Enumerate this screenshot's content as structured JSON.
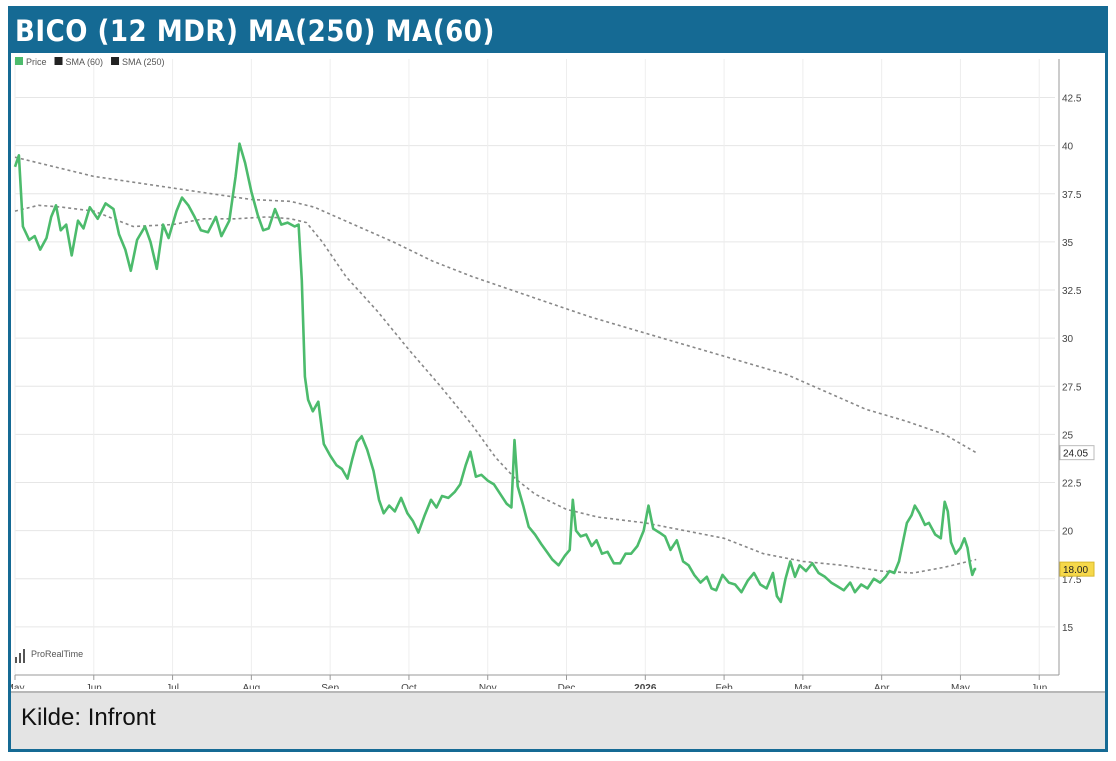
{
  "header": {
    "title": "BICO (12 MDR) MA(250) MA(60)"
  },
  "footer": {
    "source": "Kilde: Infront"
  },
  "colors": {
    "frame": "#156a94",
    "price": "#4cbb6c",
    "sma": "#888888",
    "last_price_badge": "#f6d84a",
    "footer_bg": "#e4e4e4"
  },
  "watermark": {
    "text": "ProRealTime",
    "icon": "bar-chart-icon"
  },
  "chart_data": {
    "type": "line",
    "legend": {
      "position": "top-left",
      "items": [
        {
          "label": "Price",
          "color": "#4cbb6c"
        },
        {
          "label": "SMA (60)",
          "color": "#222222"
        },
        {
          "label": "SMA (250)",
          "color": "#222222"
        }
      ]
    },
    "x_tick_labels": [
      "May",
      "Jun",
      "Jul",
      "Aug",
      "Sep",
      "Oct",
      "Nov",
      "Dec",
      "2026",
      "Feb",
      "Mar",
      "Apr",
      "May",
      "Jun"
    ],
    "x_ticks_months": [
      0,
      1,
      2,
      3,
      4,
      5,
      6,
      7,
      8,
      9,
      10,
      11,
      12,
      13
    ],
    "xlim_months": [
      0,
      13.2
    ],
    "y_tick_labels": [
      "15",
      "17.5",
      "20",
      "22.5",
      "25",
      "27.5",
      "30",
      "32.5",
      "35",
      "37.5",
      "40",
      "42.5"
    ],
    "y_ticks": [
      15,
      17.5,
      20,
      22.5,
      25,
      27.5,
      30,
      32.5,
      35,
      37.5,
      40,
      42.5
    ],
    "ylim": [
      12.5,
      44.5
    ],
    "grid": true,
    "y_axis_position": "right",
    "last_value_labels": [
      {
        "series": "SMA (250)",
        "value": "24.05"
      },
      {
        "series": "Price",
        "value": "18.00"
      }
    ],
    "series": [
      {
        "name": "Price",
        "color": "#4cbb6c",
        "style": "solid",
        "points": [
          [
            0.0,
            38.9
          ],
          [
            0.05,
            39.5
          ],
          [
            0.1,
            35.8
          ],
          [
            0.18,
            35.1
          ],
          [
            0.25,
            35.3
          ],
          [
            0.32,
            34.6
          ],
          [
            0.4,
            35.2
          ],
          [
            0.46,
            36.3
          ],
          [
            0.52,
            36.9
          ],
          [
            0.58,
            35.6
          ],
          [
            0.65,
            35.9
          ],
          [
            0.72,
            34.3
          ],
          [
            0.8,
            36.1
          ],
          [
            0.87,
            35.7
          ],
          [
            0.95,
            36.8
          ],
          [
            1.05,
            36.2
          ],
          [
            1.15,
            37.0
          ],
          [
            1.25,
            36.7
          ],
          [
            1.32,
            35.4
          ],
          [
            1.4,
            34.6
          ],
          [
            1.47,
            33.5
          ],
          [
            1.55,
            35.1
          ],
          [
            1.65,
            35.8
          ],
          [
            1.72,
            35.0
          ],
          [
            1.8,
            33.6
          ],
          [
            1.88,
            35.9
          ],
          [
            1.95,
            35.2
          ],
          [
            2.05,
            36.6
          ],
          [
            2.12,
            37.3
          ],
          [
            2.2,
            36.9
          ],
          [
            2.28,
            36.3
          ],
          [
            2.36,
            35.6
          ],
          [
            2.45,
            35.5
          ],
          [
            2.55,
            36.3
          ],
          [
            2.62,
            35.3
          ],
          [
            2.72,
            36.1
          ],
          [
            2.8,
            38.4
          ],
          [
            2.85,
            40.1
          ],
          [
            2.92,
            39.1
          ],
          [
            3.0,
            37.6
          ],
          [
            3.08,
            36.4
          ],
          [
            3.15,
            35.6
          ],
          [
            3.22,
            35.7
          ],
          [
            3.3,
            36.7
          ],
          [
            3.38,
            35.9
          ],
          [
            3.46,
            36.0
          ],
          [
            3.55,
            35.8
          ],
          [
            3.6,
            35.9
          ],
          [
            3.64,
            33.0
          ],
          [
            3.68,
            28.0
          ],
          [
            3.72,
            26.8
          ],
          [
            3.78,
            26.2
          ],
          [
            3.85,
            26.7
          ],
          [
            3.92,
            24.5
          ],
          [
            4.0,
            23.9
          ],
          [
            4.08,
            23.4
          ],
          [
            4.15,
            23.2
          ],
          [
            4.22,
            22.7
          ],
          [
            4.28,
            23.7
          ],
          [
            4.34,
            24.6
          ],
          [
            4.4,
            24.9
          ],
          [
            4.47,
            24.2
          ],
          [
            4.55,
            23.1
          ],
          [
            4.62,
            21.6
          ],
          [
            4.68,
            20.9
          ],
          [
            4.75,
            21.3
          ],
          [
            4.82,
            21.0
          ],
          [
            4.9,
            21.7
          ],
          [
            4.98,
            20.9
          ],
          [
            5.05,
            20.5
          ],
          [
            5.12,
            19.9
          ],
          [
            5.2,
            20.8
          ],
          [
            5.28,
            21.6
          ],
          [
            5.35,
            21.2
          ],
          [
            5.42,
            21.8
          ],
          [
            5.5,
            21.7
          ],
          [
            5.58,
            22.0
          ],
          [
            5.65,
            22.4
          ],
          [
            5.72,
            23.4
          ],
          [
            5.78,
            24.1
          ],
          [
            5.85,
            22.8
          ],
          [
            5.92,
            22.9
          ],
          [
            6.0,
            22.6
          ],
          [
            6.08,
            22.4
          ],
          [
            6.16,
            21.9
          ],
          [
            6.24,
            21.4
          ],
          [
            6.3,
            21.2
          ],
          [
            6.34,
            24.7
          ],
          [
            6.38,
            22.3
          ],
          [
            6.45,
            21.3
          ],
          [
            6.52,
            20.2
          ],
          [
            6.6,
            19.8
          ],
          [
            6.68,
            19.3
          ],
          [
            6.75,
            18.9
          ],
          [
            6.82,
            18.5
          ],
          [
            6.9,
            18.2
          ],
          [
            6.98,
            18.7
          ],
          [
            7.04,
            19.0
          ],
          [
            7.08,
            21.6
          ],
          [
            7.12,
            20.0
          ],
          [
            7.18,
            19.7
          ],
          [
            7.25,
            19.8
          ],
          [
            7.32,
            19.2
          ],
          [
            7.38,
            19.5
          ],
          [
            7.45,
            18.8
          ],
          [
            7.52,
            18.9
          ],
          [
            7.6,
            18.3
          ],
          [
            7.68,
            18.3
          ],
          [
            7.75,
            18.8
          ],
          [
            7.82,
            18.8
          ],
          [
            7.9,
            19.2
          ],
          [
            7.98,
            20.0
          ],
          [
            8.04,
            21.3
          ],
          [
            8.1,
            20.1
          ],
          [
            8.18,
            19.9
          ],
          [
            8.25,
            19.7
          ],
          [
            8.32,
            19.0
          ],
          [
            8.4,
            19.5
          ],
          [
            8.48,
            18.4
          ],
          [
            8.55,
            18.2
          ],
          [
            8.62,
            17.7
          ],
          [
            8.7,
            17.3
          ],
          [
            8.78,
            17.6
          ],
          [
            8.84,
            17.0
          ],
          [
            8.9,
            16.9
          ],
          [
            8.98,
            17.7
          ],
          [
            9.06,
            17.3
          ],
          [
            9.14,
            17.2
          ],
          [
            9.22,
            16.8
          ],
          [
            9.3,
            17.4
          ],
          [
            9.38,
            17.8
          ],
          [
            9.46,
            17.2
          ],
          [
            9.54,
            17.0
          ],
          [
            9.62,
            17.8
          ],
          [
            9.67,
            16.6
          ],
          [
            9.72,
            16.3
          ],
          [
            9.78,
            17.5
          ],
          [
            9.84,
            18.4
          ],
          [
            9.9,
            17.6
          ],
          [
            9.96,
            18.2
          ],
          [
            10.04,
            17.9
          ],
          [
            10.12,
            18.3
          ],
          [
            10.2,
            17.8
          ],
          [
            10.28,
            17.6
          ],
          [
            10.36,
            17.3
          ],
          [
            10.44,
            17.1
          ],
          [
            10.52,
            16.9
          ],
          [
            10.6,
            17.3
          ],
          [
            10.66,
            16.8
          ],
          [
            10.74,
            17.2
          ],
          [
            10.82,
            17.0
          ],
          [
            10.9,
            17.5
          ],
          [
            10.98,
            17.3
          ],
          [
            11.05,
            17.6
          ],
          [
            11.1,
            17.9
          ],
          [
            11.16,
            17.8
          ],
          [
            11.22,
            18.4
          ],
          [
            11.28,
            19.6
          ],
          [
            11.32,
            20.4
          ],
          [
            11.38,
            20.8
          ],
          [
            11.42,
            21.3
          ],
          [
            11.48,
            20.9
          ],
          [
            11.55,
            20.3
          ],
          [
            11.6,
            20.4
          ],
          [
            11.68,
            19.8
          ],
          [
            11.75,
            19.6
          ],
          [
            11.8,
            21.5
          ],
          [
            11.84,
            21.0
          ],
          [
            11.88,
            19.4
          ],
          [
            11.94,
            18.8
          ],
          [
            12.0,
            19.1
          ],
          [
            12.05,
            19.6
          ],
          [
            12.09,
            19.1
          ],
          [
            12.12,
            18.3
          ],
          [
            12.15,
            17.7
          ],
          [
            12.18,
            18.0
          ],
          [
            12.2,
            18.0
          ]
        ]
      },
      {
        "name": "SMA (60)",
        "color": "#888888",
        "style": "dashed",
        "points": [
          [
            0.0,
            36.6
          ],
          [
            0.3,
            36.9
          ],
          [
            0.6,
            36.8
          ],
          [
            1.0,
            36.6
          ],
          [
            1.5,
            35.8
          ],
          [
            2.0,
            35.9
          ],
          [
            2.4,
            36.2
          ],
          [
            2.8,
            36.2
          ],
          [
            3.2,
            36.3
          ],
          [
            3.5,
            36.2
          ],
          [
            3.7,
            36.0
          ],
          [
            3.9,
            35.0
          ],
          [
            4.2,
            33.2
          ],
          [
            4.6,
            31.4
          ],
          [
            5.0,
            29.4
          ],
          [
            5.4,
            27.5
          ],
          [
            5.8,
            25.5
          ],
          [
            6.1,
            23.8
          ],
          [
            6.35,
            22.7
          ],
          [
            6.6,
            21.9
          ],
          [
            7.0,
            21.1
          ],
          [
            7.4,
            20.7
          ],
          [
            8.0,
            20.4
          ],
          [
            8.5,
            20.0
          ],
          [
            9.0,
            19.6
          ],
          [
            9.5,
            18.8
          ],
          [
            10.0,
            18.4
          ],
          [
            10.5,
            18.2
          ],
          [
            11.0,
            17.9
          ],
          [
            11.4,
            17.8
          ],
          [
            11.8,
            18.1
          ],
          [
            12.2,
            18.5
          ]
        ]
      },
      {
        "name": "SMA (250)",
        "color": "#888888",
        "style": "dashed",
        "points": [
          [
            0.0,
            39.4
          ],
          [
            0.5,
            38.9
          ],
          [
            1.0,
            38.4
          ],
          [
            1.5,
            38.1
          ],
          [
            2.0,
            37.8
          ],
          [
            2.5,
            37.5
          ],
          [
            3.0,
            37.2
          ],
          [
            3.5,
            37.1
          ],
          [
            3.8,
            36.8
          ],
          [
            4.3,
            35.9
          ],
          [
            4.8,
            35.0
          ],
          [
            5.3,
            34.0
          ],
          [
            5.8,
            33.2
          ],
          [
            6.3,
            32.5
          ],
          [
            6.8,
            31.8
          ],
          [
            7.3,
            31.1
          ],
          [
            7.8,
            30.5
          ],
          [
            8.3,
            29.9
          ],
          [
            8.8,
            29.3
          ],
          [
            9.3,
            28.7
          ],
          [
            9.8,
            28.1
          ],
          [
            10.3,
            27.2
          ],
          [
            10.8,
            26.3
          ],
          [
            11.3,
            25.7
          ],
          [
            11.8,
            25.0
          ],
          [
            12.2,
            24.05
          ]
        ]
      }
    ]
  }
}
